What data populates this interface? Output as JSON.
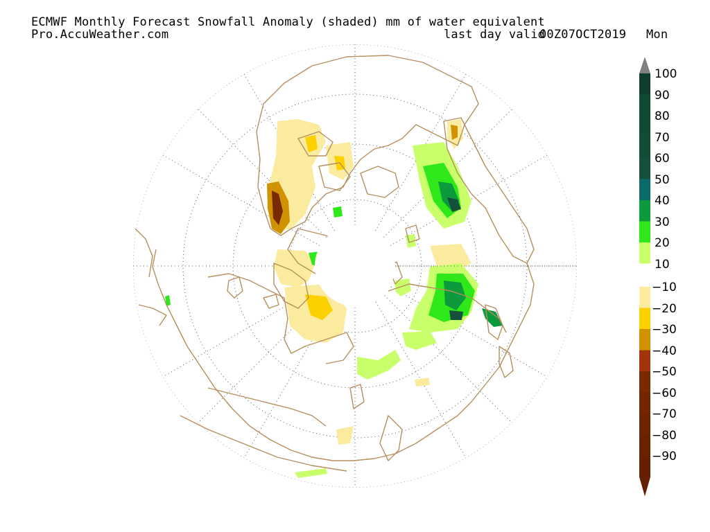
{
  "header": {
    "title": "ECMWF Monthly Forecast Snowfall Anomaly (shaded) mm of water equivalent",
    "source": "Pro.AccuWeather.com",
    "valid_label": "last day valid",
    "valid_time": "00Z07OCT2019",
    "valid_day": "Mon"
  },
  "colorbar": {
    "positive": [
      {
        "label": "100",
        "color": "#0f3f2c"
      },
      {
        "label": "90",
        "color": "#114a33"
      },
      {
        "label": "80",
        "color": "#124a34"
      },
      {
        "label": "70",
        "color": "#134d36"
      },
      {
        "label": "60",
        "color": "#14503a"
      },
      {
        "label": "50",
        "color": "#0e6a66"
      },
      {
        "label": "40",
        "color": "#0d9a3c"
      },
      {
        "label": "30",
        "color": "#2ee81a"
      },
      {
        "label": "20",
        "color": "#c9ff6a"
      },
      {
        "label": "10",
        "color": ""
      }
    ],
    "negative": [
      {
        "label": "−10",
        "color": "#fbeb9f"
      },
      {
        "label": "−20",
        "color": "#fdd100"
      },
      {
        "label": "−30",
        "color": "#d09200"
      },
      {
        "label": "−40",
        "color": "#a3350e"
      },
      {
        "label": "−50",
        "color": "#7a2a00"
      },
      {
        "label": "−60",
        "color": "#722600"
      },
      {
        "label": "−70",
        "color": "#6e2400"
      },
      {
        "label": "−80",
        "color": "#6a2300"
      },
      {
        "label": "−90",
        "color": "#642000"
      }
    ],
    "top_arrow_color": "#808080",
    "bottom_arrow_color": "#642000"
  },
  "map": {
    "projection": "north-polar-stereographic",
    "coast_color": "#b58f5e",
    "grid_style": "dotted",
    "no_data_pole": true
  }
}
